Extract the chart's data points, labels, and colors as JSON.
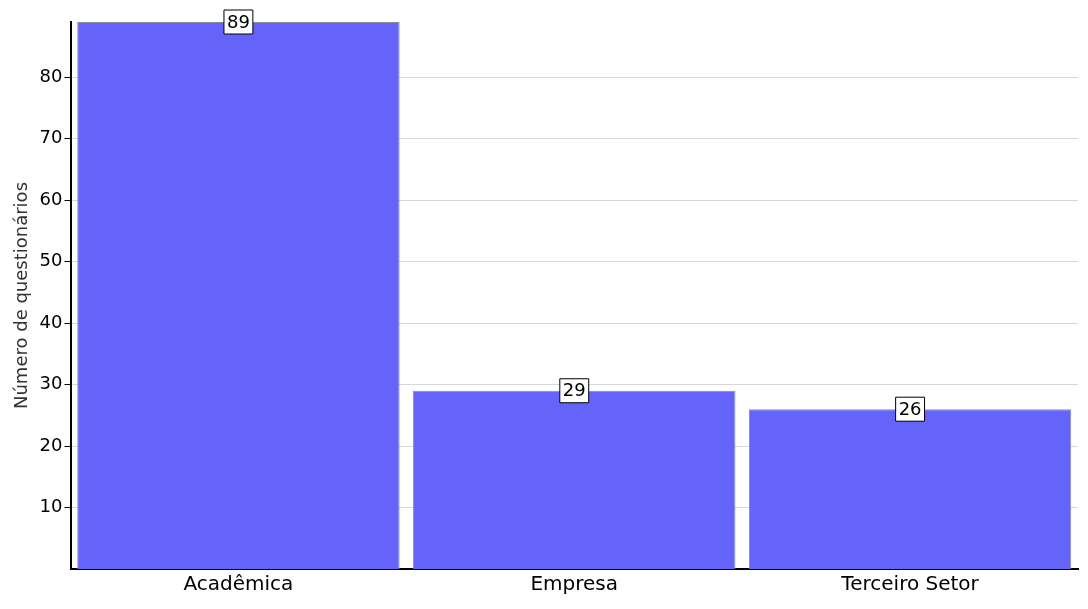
{
  "chart_data": {
    "type": "bar",
    "ylabel": "Número de questionários",
    "categories": [
      "Acadêmica",
      "Empresa",
      "Terceiro Setor"
    ],
    "values": [
      89,
      29,
      26
    ],
    "color": "#6464fa",
    "ylim": [
      0,
      89
    ],
    "yticks": [
      10,
      20,
      30,
      40,
      50,
      60,
      70,
      80
    ],
    "grid": "y",
    "data_labels": true,
    "legend": false
  }
}
